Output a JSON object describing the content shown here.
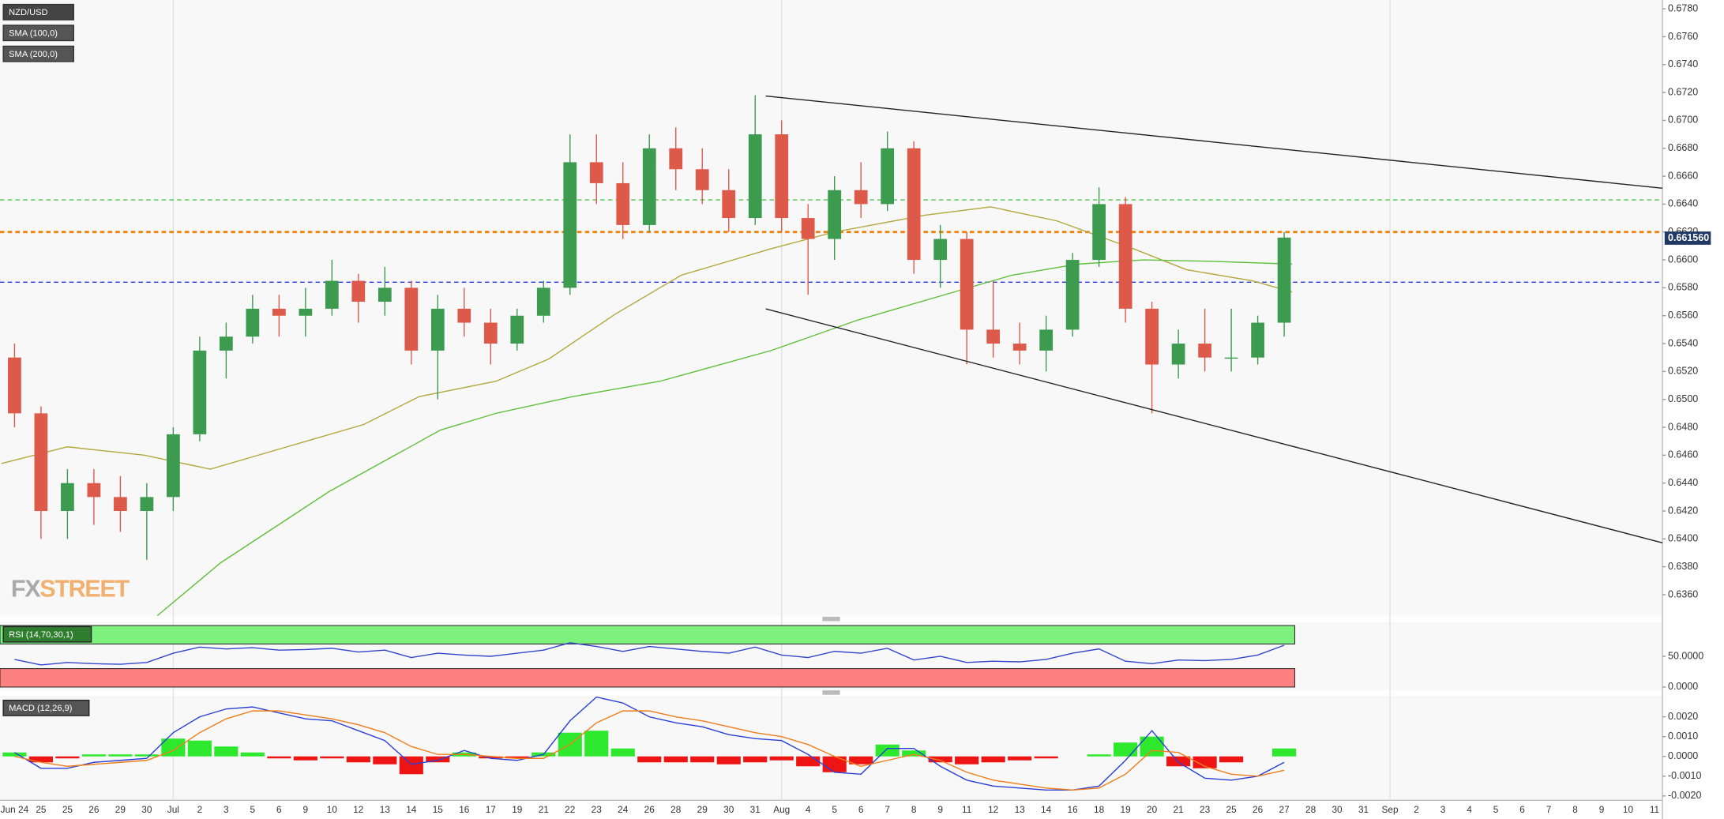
{
  "chart_data": [
    {
      "type": "candlestick",
      "title": "NZD/USD",
      "categories": [
        "Jun 24",
        "25",
        "25",
        "26",
        "29",
        "30",
        "Jul",
        "2",
        "3",
        "5",
        "6",
        "9",
        "10",
        "12",
        "13",
        "14",
        "15",
        "16",
        "17",
        "19",
        "21",
        "22",
        "23",
        "24",
        "26",
        "28",
        "29",
        "30",
        "31",
        "Aug",
        "4",
        "5",
        "6",
        "7",
        "8",
        "9",
        "11",
        "12",
        "13",
        "14",
        "16",
        "18",
        "19",
        "20",
        "21",
        "23",
        "25",
        "26",
        "27",
        "28",
        "30",
        "31",
        "Sep",
        "2",
        "3",
        "4",
        "5",
        "6",
        "7",
        "8",
        "9",
        "10",
        "11"
      ],
      "month_starts": [
        6,
        29,
        52
      ],
      "xlim": [
        -0.55,
        62.3
      ],
      "ylim": [
        0.6345,
        0.67863
      ],
      "yticks": [
        {
          "value": 0.678,
          "label": "0.6780"
        },
        {
          "value": 0.676,
          "label": "0.6760"
        },
        {
          "value": 0.674,
          "label": "0.6740"
        },
        {
          "value": 0.672,
          "label": "0.6720"
        },
        {
          "value": 0.67,
          "label": "0.6700"
        },
        {
          "value": 0.668,
          "label": "0.6680"
        },
        {
          "value": 0.666,
          "label": "0.6660"
        },
        {
          "value": 0.664,
          "label": "0.6640"
        },
        {
          "value": 0.662,
          "label": "0.6620"
        },
        {
          "value": 0.66,
          "label": "0.6600"
        },
        {
          "value": 0.658,
          "label": "0.6580"
        },
        {
          "value": 0.656,
          "label": "0.6560"
        },
        {
          "value": 0.654,
          "label": "0.6540"
        },
        {
          "value": 0.652,
          "label": "0.6520"
        },
        {
          "value": 0.65,
          "label": "0.6500"
        },
        {
          "value": 0.648,
          "label": "0.6480"
        },
        {
          "value": 0.646,
          "label": "0.6460"
        },
        {
          "value": 0.644,
          "label": "0.6440"
        },
        {
          "value": 0.642,
          "label": "0.6420"
        },
        {
          "value": 0.64,
          "label": "0.6400"
        },
        {
          "value": 0.638,
          "label": "0.6380"
        },
        {
          "value": 0.636,
          "label": "0.6360"
        }
      ],
      "candles": {
        "up_color": "#3d9b4f",
        "down_color": "#dd5a4a",
        "x": [
          0,
          1,
          2,
          3,
          4,
          5,
          6,
          7,
          8,
          9,
          10,
          11,
          12,
          13,
          14,
          15,
          16,
          17,
          18,
          19,
          20,
          21,
          22,
          23,
          24,
          25,
          26,
          27,
          28,
          29,
          30,
          31,
          32,
          33,
          34,
          35,
          36,
          37,
          38,
          39,
          40,
          41,
          42,
          43,
          44,
          45,
          46,
          47,
          48
        ],
        "open": [
          0.653,
          0.649,
          0.642,
          0.644,
          0.643,
          0.642,
          0.643,
          0.6475,
          0.6535,
          0.6545,
          0.6565,
          0.656,
          0.6565,
          0.6585,
          0.657,
          0.658,
          0.6535,
          0.6565,
          0.6555,
          0.654,
          0.656,
          0.658,
          0.667,
          0.6655,
          0.6625,
          0.668,
          0.6665,
          0.665,
          0.663,
          0.669,
          0.663,
          0.6615,
          0.665,
          0.664,
          0.668,
          0.66,
          0.6615,
          0.655,
          0.654,
          0.6535,
          0.655,
          0.66,
          0.664,
          0.6565,
          0.6525,
          0.654,
          0.653,
          0.653,
          0.6555
        ],
        "high": [
          0.654,
          0.6495,
          0.645,
          0.645,
          0.6445,
          0.644,
          0.648,
          0.6545,
          0.6555,
          0.6575,
          0.6575,
          0.658,
          0.66,
          0.659,
          0.6595,
          0.6585,
          0.6575,
          0.658,
          0.6565,
          0.6565,
          0.6585,
          0.669,
          0.669,
          0.667,
          0.669,
          0.6695,
          0.668,
          0.6665,
          0.6718,
          0.67,
          0.664,
          0.666,
          0.667,
          0.6692,
          0.6685,
          0.6625,
          0.662,
          0.6585,
          0.6555,
          0.656,
          0.6605,
          0.6652,
          0.6645,
          0.657,
          0.655,
          0.6565,
          0.6565,
          0.656,
          0.662
        ],
        "low": [
          0.648,
          0.64,
          0.64,
          0.641,
          0.6405,
          0.6385,
          0.642,
          0.647,
          0.6515,
          0.654,
          0.6545,
          0.6545,
          0.656,
          0.6555,
          0.656,
          0.6525,
          0.65,
          0.6545,
          0.6525,
          0.6535,
          0.6555,
          0.6575,
          0.664,
          0.6615,
          0.662,
          0.665,
          0.664,
          0.662,
          0.6625,
          0.662,
          0.6575,
          0.66,
          0.663,
          0.6635,
          0.659,
          0.658,
          0.6525,
          0.653,
          0.6525,
          0.652,
          0.6545,
          0.6595,
          0.6555,
          0.649,
          0.6515,
          0.652,
          0.652,
          0.6525,
          0.6545
        ],
        "close": [
          0.649,
          0.642,
          0.644,
          0.643,
          0.642,
          0.643,
          0.6475,
          0.6535,
          0.6545,
          0.6565,
          0.656,
          0.6565,
          0.6585,
          0.657,
          0.658,
          0.6535,
          0.6565,
          0.6555,
          0.654,
          0.656,
          0.658,
          0.667,
          0.6655,
          0.6625,
          0.668,
          0.6665,
          0.665,
          0.663,
          0.669,
          0.663,
          0.6615,
          0.665,
          0.664,
          0.668,
          0.66,
          0.6615,
          0.655,
          0.654,
          0.6535,
          0.655,
          0.66,
          0.664,
          0.6565,
          0.6525,
          0.654,
          0.653,
          0.653,
          0.6555,
          0.6616
        ]
      },
      "overlays": [
        {
          "name": "SMA (100,0)",
          "color": "#b3a73c",
          "x": [
            -0.5,
            2,
            4.9,
            7.4,
            10.3,
            13.2,
            15.3,
            18.2,
            20.2,
            22.7,
            25.2,
            28.6,
            31,
            34.4,
            36.9,
            39.4,
            42.3,
            44.3,
            46.8,
            48.3
          ],
          "values": [
            0.6454,
            0.6466,
            0.646,
            0.645,
            0.6466,
            0.6482,
            0.6502,
            0.6513,
            0.6529,
            0.6561,
            0.6589,
            0.6608,
            0.662,
            0.6632,
            0.6638,
            0.6628,
            0.6608,
            0.6593,
            0.6585,
            0.6577
          ]
        },
        {
          "name": "SMA (200,0)",
          "color": "#5fbf3a",
          "x": [
            5.4,
            7.8,
            11.9,
            16.1,
            18.2,
            21.1,
            24.4,
            28.6,
            31.9,
            34.8,
            37.7,
            40.2,
            42.7,
            45.2,
            48.3
          ],
          "values": [
            0.6345,
            0.6383,
            0.6434,
            0.6478,
            0.649,
            0.6502,
            0.6513,
            0.6535,
            0.6557,
            0.6573,
            0.6589,
            0.6597,
            0.66,
            0.6599,
            0.6597
          ]
        }
      ],
      "hlines": [
        {
          "value": 0.6643,
          "color": "#5cc85c"
        },
        {
          "value": 0.662,
          "color": "#f07d00"
        },
        {
          "value": 0.6584,
          "color": "#2233dd"
        }
      ],
      "trendlines": [
        {
          "x": [
            28.4,
            62.3
          ],
          "y": [
            0.67175,
            0.66514
          ]
        },
        {
          "x": [
            28.4,
            62.3
          ],
          "y": [
            0.65649,
            0.63972
          ]
        }
      ],
      "last_price": 0.66156,
      "last_price_label": "0.661560",
      "watermark": [
        "FX",
        "STREET"
      ]
    },
    {
      "type": "rsi",
      "title": "RSI (14,70,30,1)",
      "color": "#3344cc",
      "ylim": [
        -5.4,
        105.4
      ],
      "yticks": [
        {
          "value": 50,
          "label": "50.0000"
        },
        {
          "value": 0,
          "label": "0.0000"
        }
      ],
      "bands": [
        {
          "from": 70,
          "to": 100,
          "color": "#7ef07e"
        },
        {
          "from": 0,
          "to": 30,
          "color": "#ff8080"
        }
      ],
      "values": [
        45,
        36,
        40,
        38,
        37,
        40,
        55,
        65,
        62,
        64,
        60,
        61,
        63,
        57,
        60,
        48,
        55,
        52,
        50,
        55,
        60,
        72,
        66,
        58,
        66,
        62,
        58,
        55,
        65,
        52,
        48,
        58,
        55,
        63,
        44,
        50,
        40,
        42,
        41,
        45,
        55,
        62,
        42,
        38,
        44,
        43,
        45,
        52,
        68
      ]
    },
    {
      "type": "macd",
      "title": "MACD (12,26,9)",
      "ylim": [
        -0.00222,
        0.00306
      ],
      "yticks": [
        {
          "value": 0.002,
          "label": "0.0020"
        },
        {
          "value": 0.001,
          "label": "0.0010"
        },
        {
          "value": 0,
          "label": "0.0000"
        },
        {
          "value": -0.001,
          "label": "-0.0010"
        },
        {
          "value": -0.002,
          "label": "-0.0020"
        }
      ],
      "macd": {
        "color": "#2a3fd6",
        "values": [
          0.0002,
          -0.0006,
          -0.0006,
          -0.0003,
          -0.0002,
          -0.0001,
          0.0012,
          0.002,
          0.0024,
          0.0025,
          0.0022,
          0.0019,
          0.0018,
          0.0013,
          0.0008,
          -0.0004,
          -0.0002,
          0.0003,
          -0.0001,
          -0.0002,
          0.0001,
          0.0018,
          0.003,
          0.0027,
          0.002,
          0.0017,
          0.0015,
          0.0011,
          0.0009,
          0.0008,
          0.0001,
          -0.0008,
          -0.0009,
          0.0004,
          0.0004,
          -0.0005,
          -0.0012,
          -0.0015,
          -0.0016,
          -0.0017,
          -0.0017,
          -0.0015,
          -0.0002,
          0.0013,
          -0.0003,
          -0.0011,
          -0.0012,
          -0.001,
          -0.0003
        ]
      },
      "signal": {
        "color": "#f07d1a",
        "values": [
          0,
          -0.0003,
          -0.0005,
          -0.0004,
          -0.0003,
          -0.0002,
          0.0003,
          0.0012,
          0.0019,
          0.0023,
          0.0023,
          0.0021,
          0.0019,
          0.0016,
          0.0012,
          0.0005,
          0.0001,
          0.0001,
          0,
          -0.0001,
          -0.0001,
          0.0006,
          0.0017,
          0.0023,
          0.0023,
          0.002,
          0.0018,
          0.0015,
          0.0012,
          0.001,
          0.0006,
          0,
          -0.0005,
          -0.0002,
          0.0001,
          -0.0002,
          -0.0008,
          -0.0012,
          -0.0014,
          -0.0016,
          -0.0017,
          -0.0016,
          -0.0009,
          0.0003,
          0.0002,
          -0.0005,
          -0.0009,
          -0.001,
          -0.0007
        ]
      },
      "histogram": {
        "up_color": "#2ee82e",
        "down_color": "#ee1414",
        "values": [
          0.0002,
          -0.0003,
          -0.0001,
          0.0001,
          0.0001,
          0.0001,
          0.0009,
          0.0008,
          0.0005,
          0.0002,
          -0.0001,
          -0.0002,
          -0.0001,
          -0.0003,
          -0.0004,
          -0.0009,
          -0.0003,
          0.0002,
          -0.0001,
          -0.0001,
          0.0002,
          0.0012,
          0.0013,
          0.0004,
          -0.0003,
          -0.0003,
          -0.0003,
          -0.0004,
          -0.0003,
          -0.0002,
          -0.0005,
          -0.0008,
          -0.0004,
          0.0006,
          0.0003,
          -0.0003,
          -0.0004,
          -0.0003,
          -0.0002,
          -0.0001,
          0,
          0.0001,
          0.0007,
          0.001,
          -0.0005,
          -0.0006,
          -0.0003,
          0,
          0.0004
        ]
      }
    }
  ]
}
